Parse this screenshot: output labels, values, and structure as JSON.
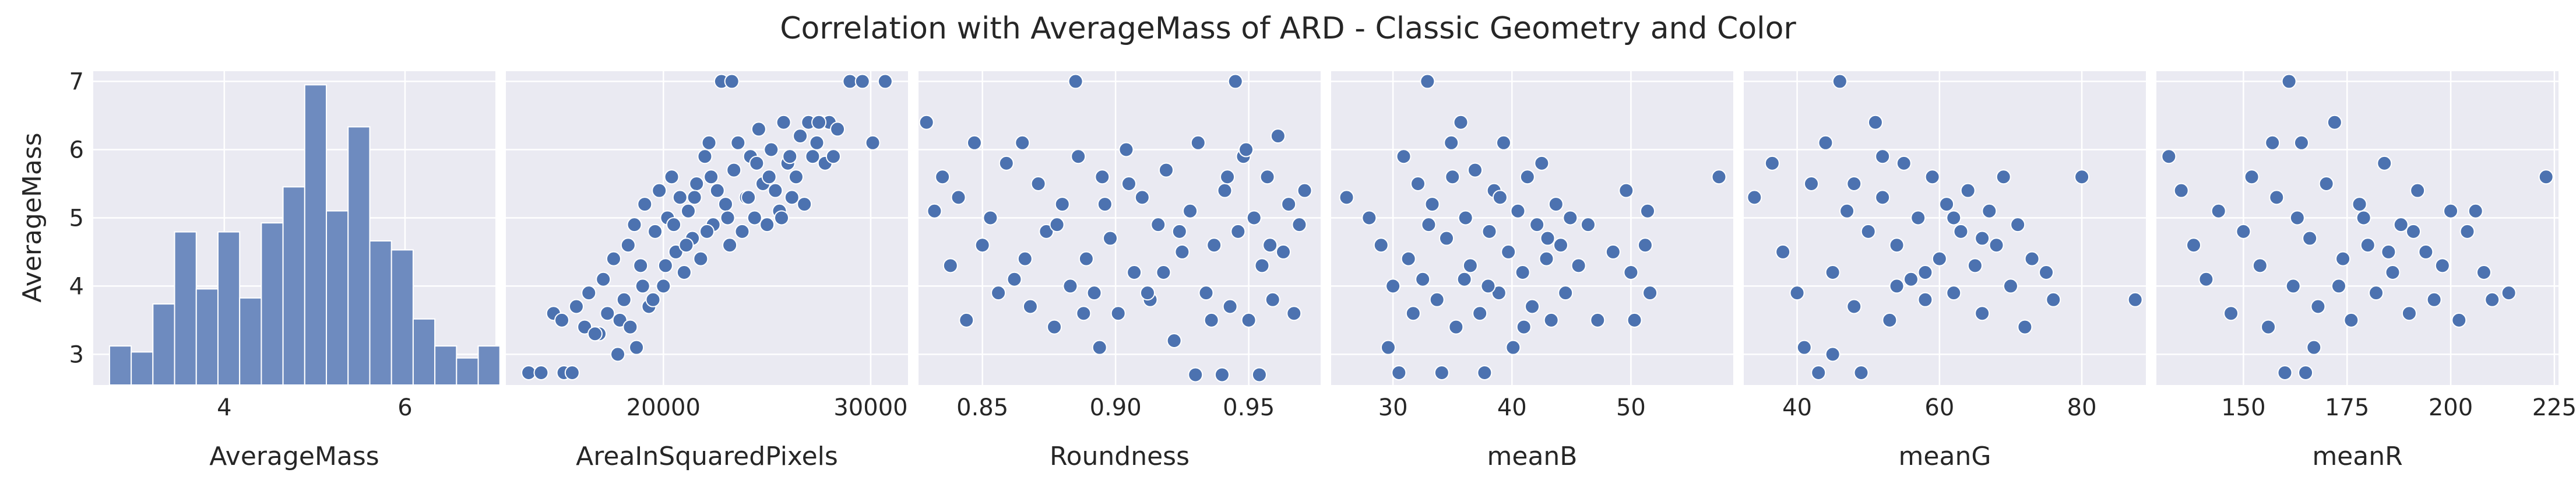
{
  "title": "Correlation with AverageMass of ARD - Classic Geometry and Color",
  "style": {
    "panel_bg": "#eaeaf2",
    "grid": "#ffffff",
    "marker": "#4c72b0",
    "marker_edge": "#ffffff",
    "hist_fill": "#6e8bbf",
    "text": "#262626"
  },
  "chart_data": [
    {
      "type": "histogram",
      "xlabel": "AverageMass",
      "ylabel": "AverageMass",
      "xlim": [
        2.55,
        7.0
      ],
      "xticks": [
        4,
        6
      ],
      "ylim": [
        2.55,
        7.15
      ],
      "yticks": [
        3,
        4,
        5,
        6,
        7
      ],
      "bins": [
        {
          "x0": 2.73,
          "x1": 2.97,
          "count": 0.13
        },
        {
          "x0": 2.97,
          "x1": 3.21,
          "count": 0.11
        },
        {
          "x0": 3.21,
          "x1": 3.45,
          "count": 0.27
        },
        {
          "x0": 3.45,
          "x1": 3.69,
          "count": 0.51
        },
        {
          "x0": 3.69,
          "x1": 3.93,
          "count": 0.32
        },
        {
          "x0": 3.93,
          "x1": 4.17,
          "count": 0.51
        },
        {
          "x0": 4.17,
          "x1": 4.41,
          "count": 0.29
        },
        {
          "x0": 4.41,
          "x1": 4.65,
          "count": 0.54
        },
        {
          "x0": 4.65,
          "x1": 4.89,
          "count": 0.66
        },
        {
          "x0": 4.89,
          "x1": 5.13,
          "count": 1.0
        },
        {
          "x0": 5.13,
          "x1": 5.37,
          "count": 0.58
        },
        {
          "x0": 5.37,
          "x1": 5.61,
          "count": 0.86
        },
        {
          "x0": 5.61,
          "x1": 5.85,
          "count": 0.48
        },
        {
          "x0": 5.85,
          "x1": 6.09,
          "count": 0.45
        },
        {
          "x0": 6.09,
          "x1": 6.33,
          "count": 0.22
        },
        {
          "x0": 6.33,
          "x1": 6.57,
          "count": 0.13
        },
        {
          "x0": 6.57,
          "x1": 6.81,
          "count": 0.09
        },
        {
          "x0": 6.81,
          "x1": 7.05,
          "count": 0.13
        }
      ]
    },
    {
      "type": "scatter",
      "xlabel": "AreaInSquaredPixels",
      "ylabel": "AverageMass",
      "xlim": [
        12400,
        31800
      ],
      "xticks": [
        20000,
        30000
      ],
      "ylim": [
        2.55,
        7.15
      ],
      "points": [
        [
          13500,
          2.73
        ],
        [
          14100,
          2.73
        ],
        [
          15200,
          2.73
        ],
        [
          15600,
          2.73
        ],
        [
          14700,
          3.6
        ],
        [
          15100,
          3.5
        ],
        [
          15800,
          3.7
        ],
        [
          16200,
          3.4
        ],
        [
          16400,
          3.9
        ],
        [
          16900,
          3.3
        ],
        [
          17100,
          4.1
        ],
        [
          17300,
          3.6
        ],
        [
          17600,
          4.4
        ],
        [
          17800,
          3.0
        ],
        [
          18100,
          3.8
        ],
        [
          18300,
          4.6
        ],
        [
          18600,
          4.9
        ],
        [
          18700,
          3.1
        ],
        [
          18900,
          4.3
        ],
        [
          19100,
          5.2
        ],
        [
          19300,
          3.7
        ],
        [
          19600,
          4.8
        ],
        [
          19800,
          5.4
        ],
        [
          20000,
          4.0
        ],
        [
          20200,
          5.0
        ],
        [
          20400,
          5.6
        ],
        [
          20600,
          4.5
        ],
        [
          20800,
          5.3
        ],
        [
          21000,
          4.2
        ],
        [
          21200,
          5.1
        ],
        [
          21400,
          4.7
        ],
        [
          21600,
          5.5
        ],
        [
          21800,
          4.4
        ],
        [
          22000,
          5.9
        ],
        [
          22200,
          6.1
        ],
        [
          22400,
          4.9
        ],
        [
          22600,
          5.4
        ],
        [
          22800,
          7.0
        ],
        [
          23000,
          5.2
        ],
        [
          23200,
          4.6
        ],
        [
          23300,
          7.0
        ],
        [
          23400,
          5.7
        ],
        [
          23600,
          6.1
        ],
        [
          23800,
          4.8
        ],
        [
          24000,
          5.3
        ],
        [
          24200,
          5.9
        ],
        [
          24400,
          5.0
        ],
        [
          24600,
          6.3
        ],
        [
          24800,
          5.5
        ],
        [
          25000,
          4.9
        ],
        [
          25200,
          6.0
        ],
        [
          25400,
          5.4
        ],
        [
          25600,
          5.1
        ],
        [
          25800,
          6.4
        ],
        [
          26000,
          5.8
        ],
        [
          26200,
          5.3
        ],
        [
          26400,
          5.6
        ],
        [
          26600,
          6.2
        ],
        [
          26800,
          5.2
        ],
        [
          27000,
          6.4
        ],
        [
          27200,
          5.9
        ],
        [
          27400,
          6.1
        ],
        [
          27600,
          6.4
        ],
        [
          27800,
          5.8
        ],
        [
          28000,
          6.4
        ],
        [
          28200,
          5.9
        ],
        [
          28400,
          6.3
        ],
        [
          29000,
          7.0
        ],
        [
          29600,
          7.0
        ],
        [
          30100,
          6.1
        ],
        [
          30700,
          7.0
        ],
        [
          16700,
          3.3
        ],
        [
          17900,
          3.5
        ],
        [
          19000,
          4.0
        ],
        [
          20100,
          4.3
        ],
        [
          21100,
          4.6
        ],
        [
          22100,
          4.8
        ],
        [
          23100,
          5.0
        ],
        [
          24100,
          5.3
        ],
        [
          25100,
          5.6
        ],
        [
          26100,
          5.9
        ],
        [
          19500,
          3.8
        ],
        [
          20500,
          4.9
        ],
        [
          21500,
          5.3
        ],
        [
          24500,
          5.8
        ],
        [
          27500,
          6.4
        ],
        [
          18400,
          3.4
        ],
        [
          22300,
          5.6
        ],
        [
          25700,
          5.0
        ]
      ]
    },
    {
      "type": "scatter",
      "xlabel": "Roundness",
      "ylabel": "AverageMass",
      "xlim": [
        0.826,
        0.977
      ],
      "xticks": [
        0.85,
        0.9,
        0.95
      ],
      "ylim": [
        2.55,
        7.15
      ],
      "points": [
        [
          0.829,
          6.4
        ],
        [
          0.832,
          5.1
        ],
        [
          0.835,
          5.6
        ],
        [
          0.838,
          4.3
        ],
        [
          0.841,
          5.3
        ],
        [
          0.844,
          3.5
        ],
        [
          0.847,
          6.1
        ],
        [
          0.85,
          4.6
        ],
        [
          0.853,
          5.0
        ],
        [
          0.856,
          3.9
        ],
        [
          0.859,
          5.8
        ],
        [
          0.862,
          4.1
        ],
        [
          0.865,
          6.1
        ],
        [
          0.868,
          3.7
        ],
        [
          0.871,
          5.5
        ],
        [
          0.874,
          4.8
        ],
        [
          0.877,
          3.4
        ],
        [
          0.88,
          5.2
        ],
        [
          0.883,
          4.0
        ],
        [
          0.885,
          7.0
        ],
        [
          0.886,
          5.9
        ],
        [
          0.889,
          4.4
        ],
        [
          0.892,
          3.9
        ],
        [
          0.894,
          3.1
        ],
        [
          0.895,
          5.6
        ],
        [
          0.898,
          4.7
        ],
        [
          0.901,
          3.6
        ],
        [
          0.904,
          6.0
        ],
        [
          0.907,
          4.2
        ],
        [
          0.91,
          5.3
        ],
        [
          0.913,
          3.8
        ],
        [
          0.916,
          4.9
        ],
        [
          0.919,
          5.7
        ],
        [
          0.922,
          3.2
        ],
        [
          0.925,
          4.5
        ],
        [
          0.928,
          5.1
        ],
        [
          0.931,
          6.1
        ],
        [
          0.934,
          3.9
        ],
        [
          0.937,
          4.6
        ],
        [
          0.94,
          2.7
        ],
        [
          0.941,
          5.4
        ],
        [
          0.943,
          3.7
        ],
        [
          0.945,
          7.0
        ],
        [
          0.946,
          4.8
        ],
        [
          0.948,
          5.9
        ],
        [
          0.95,
          3.5
        ],
        [
          0.952,
          5.0
        ],
        [
          0.954,
          2.7
        ],
        [
          0.955,
          4.3
        ],
        [
          0.957,
          5.6
        ],
        [
          0.959,
          3.8
        ],
        [
          0.961,
          6.2
        ],
        [
          0.963,
          4.5
        ],
        [
          0.965,
          5.2
        ],
        [
          0.967,
          3.6
        ],
        [
          0.969,
          4.9
        ],
        [
          0.971,
          5.4
        ],
        [
          0.93,
          2.7
        ],
        [
          0.912,
          3.9
        ],
        [
          0.896,
          5.2
        ],
        [
          0.878,
          4.9
        ],
        [
          0.866,
          4.4
        ],
        [
          0.905,
          5.5
        ],
        [
          0.924,
          4.8
        ],
        [
          0.942,
          5.6
        ],
        [
          0.958,
          4.6
        ],
        [
          0.936,
          3.5
        ],
        [
          0.918,
          4.2
        ],
        [
          0.888,
          3.6
        ],
        [
          0.949,
          6.0
        ]
      ]
    },
    {
      "type": "scatter",
      "xlabel": "meanB",
      "ylabel": "AverageMass",
      "xlim": [
        24.8,
        58.6
      ],
      "xticks": [
        30,
        40,
        50
      ],
      "ylim": [
        2.55,
        7.15
      ],
      "points": [
        [
          26.1,
          5.3
        ],
        [
          28.0,
          5.0
        ],
        [
          29.0,
          4.6
        ],
        [
          29.6,
          3.1
        ],
        [
          30.0,
          4.0
        ],
        [
          30.5,
          2.73
        ],
        [
          30.9,
          5.9
        ],
        [
          31.3,
          4.4
        ],
        [
          31.7,
          3.6
        ],
        [
          32.1,
          5.5
        ],
        [
          32.5,
          4.1
        ],
        [
          32.9,
          7.0
        ],
        [
          33.3,
          5.2
        ],
        [
          33.7,
          3.8
        ],
        [
          34.1,
          2.73
        ],
        [
          34.5,
          4.7
        ],
        [
          34.9,
          6.1
        ],
        [
          35.3,
          3.4
        ],
        [
          35.7,
          6.4
        ],
        [
          36.1,
          5.0
        ],
        [
          36.5,
          4.3
        ],
        [
          36.9,
          5.7
        ],
        [
          37.3,
          3.6
        ],
        [
          37.7,
          2.73
        ],
        [
          38.1,
          4.8
        ],
        [
          38.5,
          5.4
        ],
        [
          38.9,
          3.9
        ],
        [
          39.3,
          6.1
        ],
        [
          39.7,
          4.5
        ],
        [
          40.1,
          3.1
        ],
        [
          40.5,
          5.1
        ],
        [
          40.9,
          4.2
        ],
        [
          41.3,
          5.6
        ],
        [
          41.7,
          3.7
        ],
        [
          42.1,
          4.9
        ],
        [
          42.5,
          5.8
        ],
        [
          42.9,
          4.4
        ],
        [
          43.3,
          3.5
        ],
        [
          43.7,
          5.2
        ],
        [
          44.1,
          4.6
        ],
        [
          44.5,
          3.9
        ],
        [
          44.9,
          5.0
        ],
        [
          45.6,
          4.3
        ],
        [
          46.4,
          4.9
        ],
        [
          47.2,
          3.5
        ],
        [
          48.5,
          4.5
        ],
        [
          49.6,
          5.4
        ],
        [
          50.0,
          4.2
        ],
        [
          50.3,
          3.5
        ],
        [
          51.4,
          5.1
        ],
        [
          51.6,
          3.9
        ],
        [
          51.2,
          4.6
        ],
        [
          57.4,
          5.6
        ],
        [
          33.0,
          4.9
        ],
        [
          36.0,
          4.1
        ],
        [
          39.0,
          5.3
        ],
        [
          41.0,
          3.4
        ],
        [
          35.0,
          5.6
        ],
        [
          38.0,
          4.0
        ],
        [
          43.0,
          4.7
        ]
      ]
    },
    {
      "type": "scatter",
      "xlabel": "meanG",
      "ylabel": "AverageMass",
      "xlim": [
        32.5,
        89.0
      ],
      "xticks": [
        40,
        60,
        80
      ],
      "ylim": [
        2.55,
        7.15
      ],
      "points": [
        [
          34.0,
          5.3
        ],
        [
          36.5,
          5.8
        ],
        [
          38.0,
          4.5
        ],
        [
          40.0,
          3.9
        ],
        [
          41.0,
          3.1
        ],
        [
          42.0,
          5.5
        ],
        [
          43.0,
          2.73
        ],
        [
          44.0,
          6.1
        ],
        [
          45.0,
          4.2
        ],
        [
          46.0,
          7.0
        ],
        [
          47.0,
          5.1
        ],
        [
          48.0,
          3.7
        ],
        [
          49.0,
          2.73
        ],
        [
          50.0,
          4.8
        ],
        [
          51.0,
          6.4
        ],
        [
          52.0,
          5.3
        ],
        [
          53.0,
          3.5
        ],
        [
          54.0,
          4.6
        ],
        [
          55.0,
          5.8
        ],
        [
          56.0,
          4.1
        ],
        [
          57.0,
          5.0
        ],
        [
          58.0,
          3.8
        ],
        [
          59.0,
          5.6
        ],
        [
          60.0,
          4.4
        ],
        [
          61.0,
          5.2
        ],
        [
          62.0,
          3.9
        ],
        [
          63.0,
          4.8
        ],
        [
          64.0,
          5.4
        ],
        [
          65.0,
          4.3
        ],
        [
          66.0,
          3.6
        ],
        [
          67.0,
          5.1
        ],
        [
          68.0,
          4.6
        ],
        [
          69.0,
          5.6
        ],
        [
          70.0,
          4.0
        ],
        [
          71.0,
          4.9
        ],
        [
          72.0,
          3.4
        ],
        [
          73.0,
          4.4
        ],
        [
          75.0,
          4.2
        ],
        [
          76.0,
          3.8
        ],
        [
          80.0,
          5.6
        ],
        [
          87.5,
          3.8
        ],
        [
          45.0,
          3.0
        ],
        [
          52.0,
          5.9
        ],
        [
          58.0,
          4.2
        ],
        [
          48.0,
          5.5
        ],
        [
          54.0,
          4.0
        ],
        [
          62.0,
          5.0
        ],
        [
          66.0,
          4.7
        ]
      ]
    },
    {
      "type": "scatter",
      "xlabel": "meanR",
      "ylabel": "AverageMass",
      "xlim": [
        129.0,
        226.0
      ],
      "xticks": [
        150,
        175,
        200,
        225
      ],
      "ylim": [
        2.55,
        7.15
      ],
      "points": [
        [
          132.0,
          5.9
        ],
        [
          135.0,
          5.4
        ],
        [
          138.0,
          4.6
        ],
        [
          141.0,
          4.1
        ],
        [
          144.0,
          5.1
        ],
        [
          147.0,
          3.6
        ],
        [
          150.0,
          4.8
        ],
        [
          152.0,
          5.6
        ],
        [
          154.0,
          4.3
        ],
        [
          156.0,
          3.4
        ],
        [
          158.0,
          5.3
        ],
        [
          160.0,
          2.73
        ],
        [
          161.0,
          7.0
        ],
        [
          162.0,
          4.0
        ],
        [
          164.0,
          6.1
        ],
        [
          165.0,
          2.73
        ],
        [
          166.0,
          4.7
        ],
        [
          168.0,
          3.7
        ],
        [
          170.0,
          5.5
        ],
        [
          172.0,
          6.4
        ],
        [
          174.0,
          4.4
        ],
        [
          176.0,
          3.5
        ],
        [
          178.0,
          5.2
        ],
        [
          180.0,
          4.6
        ],
        [
          182.0,
          3.9
        ],
        [
          184.0,
          5.8
        ],
        [
          186.0,
          4.2
        ],
        [
          188.0,
          4.9
        ],
        [
          190.0,
          3.6
        ],
        [
          192.0,
          5.4
        ],
        [
          194.0,
          4.5
        ],
        [
          196.0,
          3.8
        ],
        [
          198.0,
          4.3
        ],
        [
          200.0,
          5.1
        ],
        [
          202.0,
          3.5
        ],
        [
          204.0,
          4.8
        ],
        [
          206.0,
          5.1
        ],
        [
          208.0,
          4.2
        ],
        [
          210.0,
          3.8
        ],
        [
          214.0,
          3.9
        ],
        [
          223.0,
          5.6
        ],
        [
          157.0,
          6.1
        ],
        [
          163.0,
          5.0
        ],
        [
          167.0,
          3.1
        ],
        [
          173.0,
          4.0
        ],
        [
          179.0,
          5.0
        ],
        [
          185.0,
          4.5
        ],
        [
          191.0,
          4.8
        ]
      ]
    }
  ]
}
